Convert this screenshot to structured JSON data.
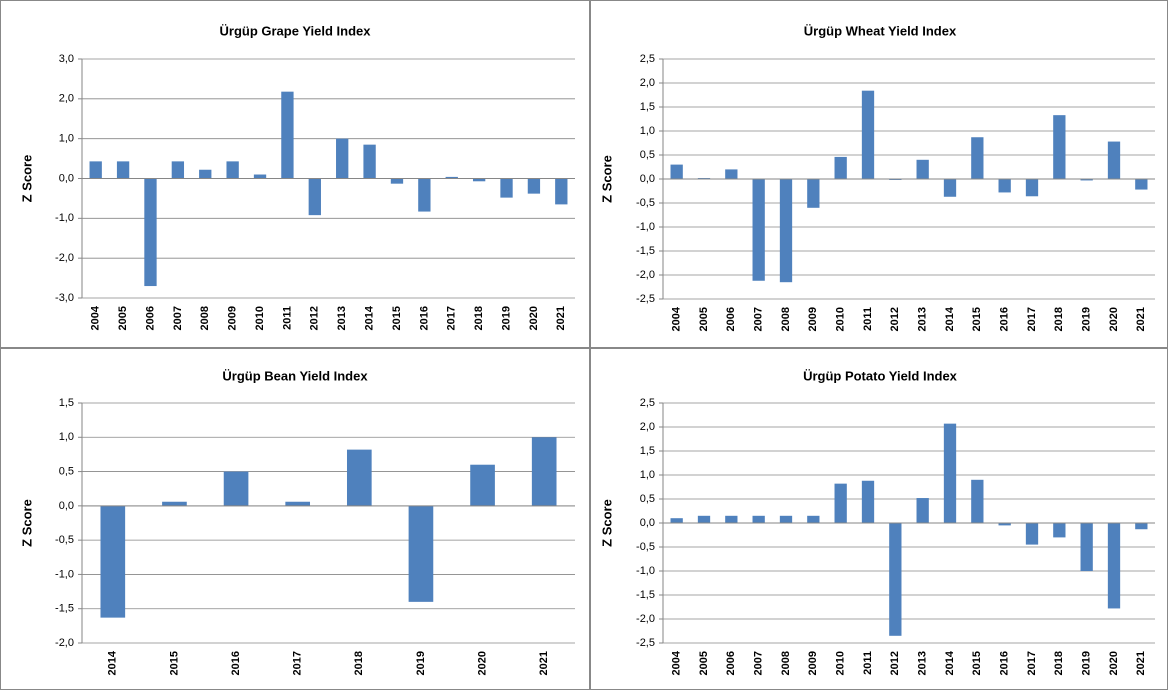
{
  "chart_data": [
    {
      "type": "bar",
      "title": "Ürgüp Grape  Yield Index",
      "y_label": "Z Score",
      "color": "#4f81bd",
      "grid": true,
      "categories": [
        "2004",
        "2005",
        "2006",
        "2007",
        "2008",
        "2009",
        "2010",
        "2011",
        "2012",
        "2013",
        "2014",
        "2015",
        "2016",
        "2017",
        "2018",
        "2019",
        "2020",
        "2021"
      ],
      "values": [
        0.43,
        0.43,
        -2.7,
        0.43,
        0.22,
        0.43,
        0.1,
        2.18,
        -0.92,
        1.0,
        0.85,
        -0.13,
        -0.83,
        0.04,
        -0.07,
        -0.48,
        -0.38,
        -0.65
      ],
      "ylim": [
        -3,
        3
      ],
      "yticks": [
        {
          "value": -3,
          "label": "-3,0"
        },
        {
          "value": -2,
          "label": "-2,0"
        },
        {
          "value": -1,
          "label": "-1,0"
        },
        {
          "value": 0,
          "label": "0,0"
        },
        {
          "value": 1,
          "label": "1,0"
        },
        {
          "value": 2,
          "label": "2,0"
        },
        {
          "value": 3,
          "label": "3,0"
        }
      ]
    },
    {
      "type": "bar",
      "title": "Ürgüp Wheat Yield Index",
      "y_label": "Z Score",
      "color": "#4f81bd",
      "grid": true,
      "categories": [
        "2004",
        "2005",
        "2006",
        "2007",
        "2008",
        "2009",
        "2010",
        "2011",
        "2012",
        "2013",
        "2014",
        "2015",
        "2016",
        "2017",
        "2018",
        "2019",
        "2020",
        "2021"
      ],
      "values": [
        0.3,
        0.02,
        0.2,
        -2.12,
        -2.15,
        -0.6,
        0.46,
        1.84,
        -0.02,
        0.4,
        -0.37,
        0.87,
        -0.28,
        -0.36,
        1.33,
        -0.03,
        0.78,
        -0.22
      ],
      "ylim": [
        -2.5,
        2.5
      ],
      "yticks": [
        {
          "value": -2.5,
          "label": "-2,5"
        },
        {
          "value": -2,
          "label": "-2,0"
        },
        {
          "value": -1.5,
          "label": "-1,5"
        },
        {
          "value": -1,
          "label": "-1,0"
        },
        {
          "value": -0.5,
          "label": "-0,5"
        },
        {
          "value": 0,
          "label": "0,0"
        },
        {
          "value": 0.5,
          "label": "0,5"
        },
        {
          "value": 1,
          "label": "1,0"
        },
        {
          "value": 1.5,
          "label": "1,5"
        },
        {
          "value": 2,
          "label": "2,0"
        },
        {
          "value": 2.5,
          "label": "2,5"
        }
      ]
    },
    {
      "type": "bar",
      "title": "Ürgüp Bean Yield Index",
      "y_label": "Z Score",
      "color": "#4f81bd",
      "grid": true,
      "categories": [
        "2014",
        "2015",
        "2016",
        "2017",
        "2018",
        "2019",
        "2020",
        "2021"
      ],
      "values": [
        -1.63,
        0.06,
        0.5,
        0.06,
        0.82,
        -1.4,
        0.6,
        1.0
      ],
      "ylim": [
        -2,
        1.5
      ],
      "yticks": [
        {
          "value": -2,
          "label": "-2,0"
        },
        {
          "value": -1.5,
          "label": "-1,5"
        },
        {
          "value": -1,
          "label": "-1,0"
        },
        {
          "value": -0.5,
          "label": "-0,5"
        },
        {
          "value": 0,
          "label": "0,0"
        },
        {
          "value": 0.5,
          "label": "0,5"
        },
        {
          "value": 1,
          "label": "1,0"
        },
        {
          "value": 1.5,
          "label": "1,5"
        }
      ]
    },
    {
      "type": "bar",
      "title": "Ürgüp Potato Yield Index",
      "y_label": "Z Score",
      "color": "#4f81bd",
      "grid": true,
      "categories": [
        "2004",
        "2005",
        "2006",
        "2007",
        "2008",
        "2009",
        "2010",
        "2011",
        "2012",
        "2013",
        "2014",
        "2015",
        "2016",
        "2017",
        "2018",
        "2019",
        "2020",
        "2021"
      ],
      "values": [
        0.1,
        0.15,
        0.15,
        0.15,
        0.15,
        0.15,
        0.82,
        0.88,
        -2.35,
        0.52,
        2.07,
        0.9,
        -0.05,
        -0.45,
        -0.3,
        -1.0,
        -1.78,
        -0.13
      ],
      "ylim": [
        -2.5,
        2.5
      ],
      "yticks": [
        {
          "value": -2.5,
          "label": "-2,5"
        },
        {
          "value": -2,
          "label": "-2,0"
        },
        {
          "value": -1.5,
          "label": "-1,5"
        },
        {
          "value": -1,
          "label": "-1,0"
        },
        {
          "value": -0.5,
          "label": "-0,5"
        },
        {
          "value": 0,
          "label": "0,0"
        },
        {
          "value": 0.5,
          "label": "0,5"
        },
        {
          "value": 1,
          "label": "1,0"
        },
        {
          "value": 1.5,
          "label": "1,5"
        },
        {
          "value": 2,
          "label": "2,0"
        },
        {
          "value": 2.5,
          "label": "2,5"
        }
      ]
    }
  ]
}
